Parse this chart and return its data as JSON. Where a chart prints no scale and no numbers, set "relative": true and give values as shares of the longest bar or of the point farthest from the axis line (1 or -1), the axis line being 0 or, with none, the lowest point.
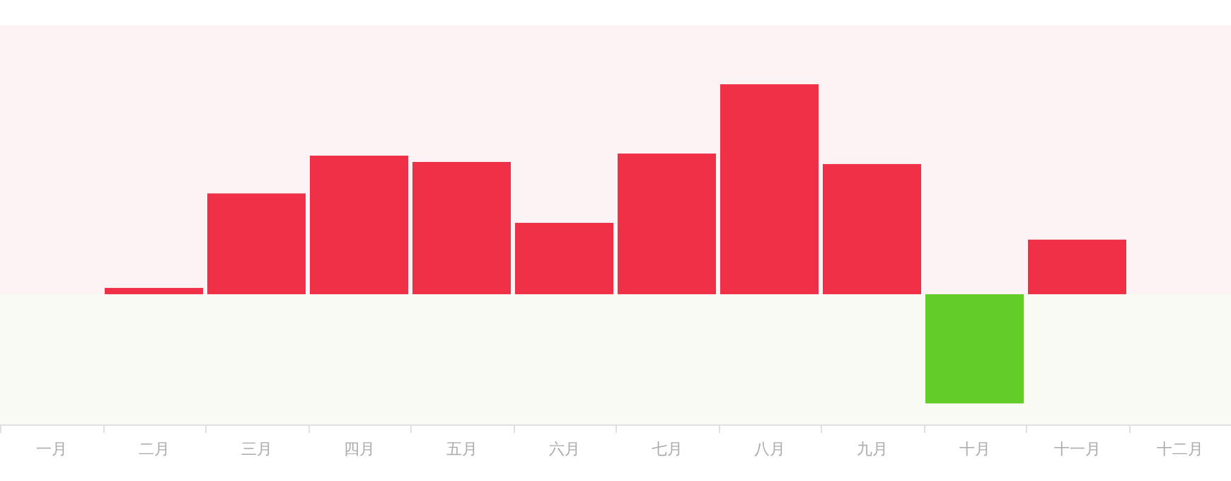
{
  "chart_data": {
    "type": "bar",
    "relative": true,
    "categories": [
      "一月",
      "二月",
      "三月",
      "四月",
      "五月",
      "六月",
      "七月",
      "八月",
      "九月",
      "十月",
      "十一月",
      "十二月"
    ],
    "values": [
      null,
      0.03,
      0.48,
      0.66,
      0.63,
      0.34,
      0.67,
      1,
      0.62,
      -0.52,
      0.26,
      null
    ],
    "colors": [
      null,
      "#f03046",
      "#f03046",
      "#f03046",
      "#f03046",
      "#f03046",
      "#f03046",
      "#f03046",
      "#f03046",
      "#63cc29",
      "#f03046",
      null
    ],
    "bands": [
      {
        "axis": "y",
        "from": 0,
        "to": 1.28,
        "color": "#fdf3f4"
      },
      {
        "axis": "y",
        "from": -0.62,
        "to": 0,
        "color": "#f9faf4"
      }
    ]
  }
}
